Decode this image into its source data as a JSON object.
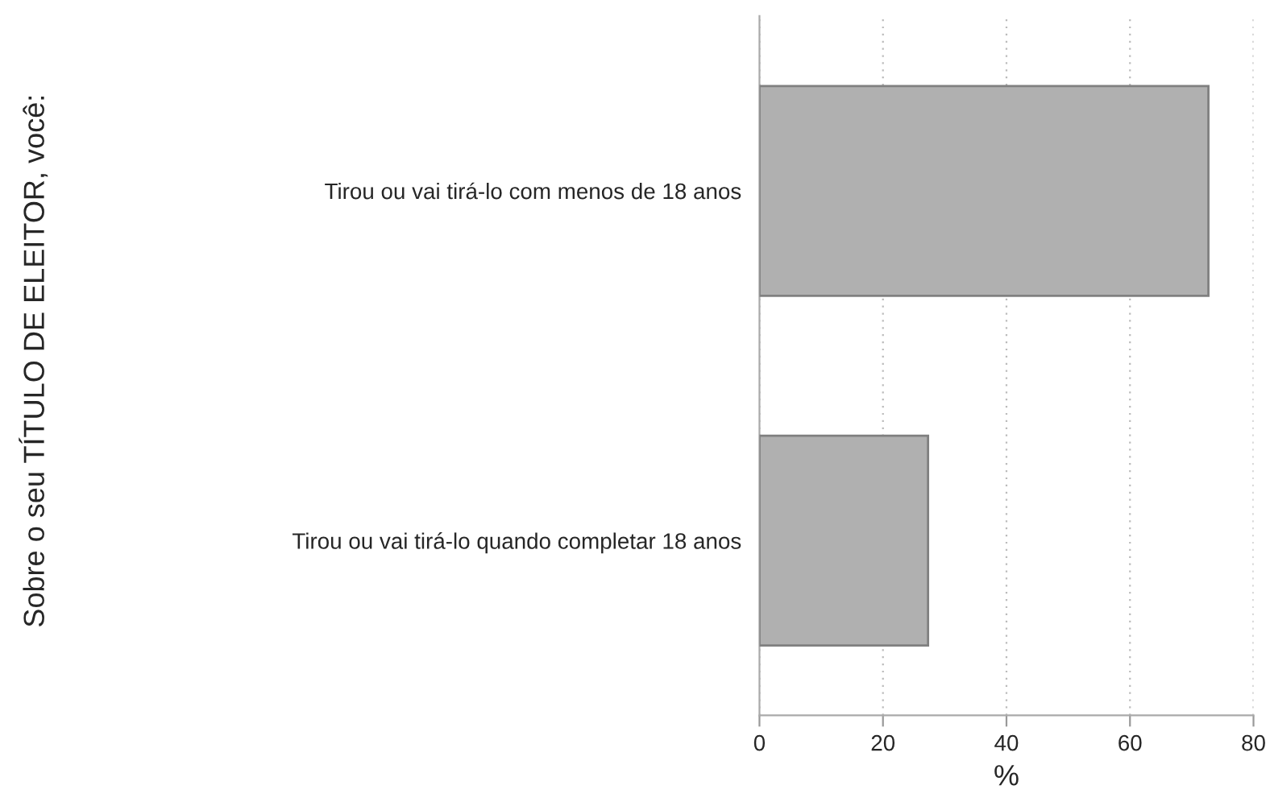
{
  "chart_data": {
    "type": "bar",
    "orientation": "horizontal",
    "annotations": [
      "Sobre o seu TÍTULO DE ELEITOR, você:"
    ],
    "xlabel": "%",
    "categories": [
      "Tirou ou vai tirá-lo com menos de 18 anos",
      "Tirou ou vai tirá-lo quando completar 18 anos"
    ],
    "values": [
      72.7,
      27.3
    ],
    "color": "#b0b0b0",
    "xlim": [
      0,
      80
    ],
    "xticks": [
      0,
      20,
      40,
      60,
      80
    ],
    "grid": "x"
  }
}
